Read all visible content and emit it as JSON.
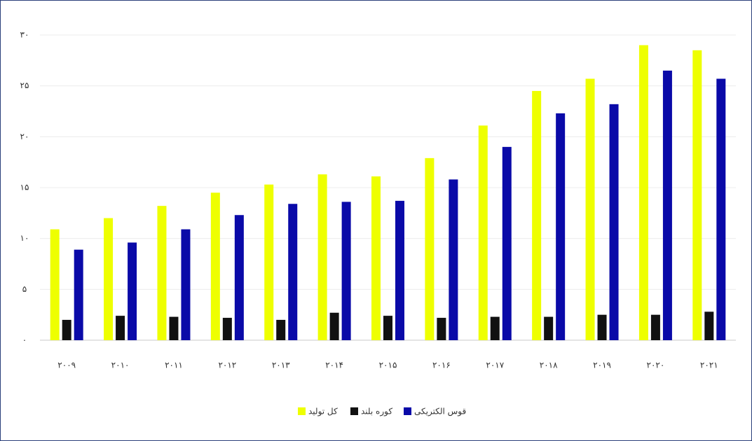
{
  "chart_data": {
    "type": "bar",
    "categories": [
      "۲۰۰۹",
      "۲۰۱۰",
      "۲۰۱۱",
      "۲۰۱۲",
      "۲۰۱۳",
      "۲۰۱۴",
      "۲۰۱۵",
      "۲۰۱۶",
      "۲۰۱۷",
      "۲۰۱۸",
      "۲۰۱۹",
      "۲۰۲۰",
      "۲۰۲۱"
    ],
    "series": [
      {
        "name": "کل تولید",
        "color": "#eeff00",
        "values": [
          10.9,
          12.0,
          13.2,
          14.5,
          15.3,
          16.3,
          16.1,
          17.9,
          21.1,
          24.5,
          25.7,
          29.0,
          28.5
        ]
      },
      {
        "name": "کوره بلند",
        "color": "#111111",
        "values": [
          2.0,
          2.4,
          2.3,
          2.2,
          2.0,
          2.7,
          2.4,
          2.2,
          2.3,
          2.3,
          2.5,
          2.5,
          2.8
        ]
      },
      {
        "name": "قوس الکتریکی",
        "color": "#0a0aa8",
        "values": [
          8.9,
          9.6,
          10.9,
          12.3,
          13.4,
          13.6,
          13.7,
          15.8,
          19.0,
          22.3,
          23.2,
          26.5,
          25.7
        ]
      }
    ],
    "ylim": [
      0,
      30
    ],
    "yticks": [
      {
        "value": 0,
        "label": "۰"
      },
      {
        "value": 5,
        "label": "۵"
      },
      {
        "value": 10,
        "label": "۱۰"
      },
      {
        "value": 15,
        "label": "۱۵"
      },
      {
        "value": 20,
        "label": "۲۰"
      },
      {
        "value": 25,
        "label": "۲۵"
      },
      {
        "value": 30,
        "label": "۳۰"
      }
    ],
    "grid": true,
    "legend": "bottom"
  }
}
